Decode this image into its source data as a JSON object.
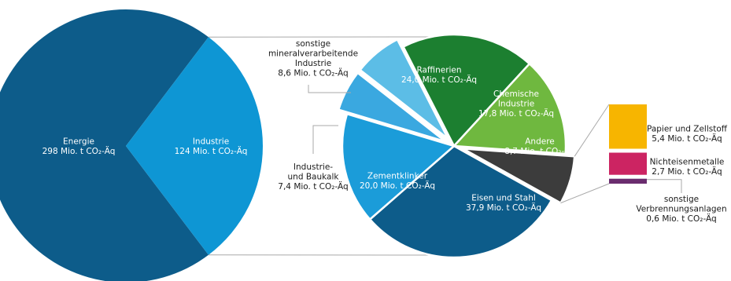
{
  "colors": {
    "energie": "#0d5c8a",
    "industrie": "#0e96d4",
    "sonstige_mineral": "#5cbde6",
    "baukalk": "#3aa8e0",
    "raffinerien": "#1c7f30",
    "chemische": "#6fb83f",
    "andere": "#3c3c3c",
    "eisen": "#0d5c8a",
    "zement": "#1b9cd9",
    "papier": "#f7b500",
    "nichteisen": "#cc2462",
    "sonstige_verbrennung": "#6a2c6e",
    "connector": "#a9a9a9"
  },
  "chart_data": [
    {
      "type": "pie",
      "slices": [
        {
          "name": "Energie",
          "value": 298,
          "label": [
            "Energie",
            "298 Mio. t CO₂-Äq"
          ]
        },
        {
          "name": "Industrie",
          "value": 124,
          "label": [
            "Industrie",
            "124 Mio. t CO₂-Äq"
          ]
        }
      ]
    },
    {
      "type": "pie",
      "slices": [
        {
          "name": "Raffinerien",
          "value": 24.0,
          "label": [
            "Raffinerien",
            "24,0 Mio. t CO₂-Äq"
          ]
        },
        {
          "name": "Chemische Industrie",
          "value": 17.8,
          "label": [
            "Chemische",
            "Industrie",
            "17,8 Mio. t CO₂-Äq"
          ]
        },
        {
          "name": "Andere",
          "value": 8.7,
          "label": [
            "Andere",
            "8,7 Mio. t CO₂-Äq"
          ]
        },
        {
          "name": "Eisen und Stahl",
          "value": 37.9,
          "label": [
            "Eisen und Stahl",
            "37,9 Mio. t CO₂-Äq"
          ]
        },
        {
          "name": "Zementklinker",
          "value": 20.0,
          "label": [
            "Zementklinker",
            "20,0 Mio. t CO₂-Äq"
          ]
        },
        {
          "name": "Industrie- und Baukalk",
          "value": 7.4,
          "label": [
            "Industrie-",
            "und Baukalk",
            "7,4 Mio. t CO₂-Äq"
          ]
        },
        {
          "name": "sonstige mineralverarbeitende Industrie",
          "value": 8.6,
          "label": [
            "sonstige",
            "mineralverarbeitende",
            "Industrie",
            "8,6 Mio. t CO₂-Äq"
          ]
        }
      ]
    },
    {
      "type": "bar",
      "stacked": true,
      "segments": [
        {
          "name": "Papier und Zellstoff",
          "value": 5.4,
          "label": [
            "Papier und Zellstoff",
            "5,4 Mio. t CO₂-Äq"
          ]
        },
        {
          "name": "Nichteisenmetalle",
          "value": 2.7,
          "label": [
            "Nichteisenmetalle",
            "2,7 Mio. t CO₂-Äq"
          ]
        },
        {
          "name": "sonstige Verbrennungsanlagen",
          "value": 0.6,
          "label": [
            "sonstige",
            "Verbrennungsanlagen",
            "0,6 Mio. t CO₂-Äq"
          ]
        }
      ]
    }
  ]
}
